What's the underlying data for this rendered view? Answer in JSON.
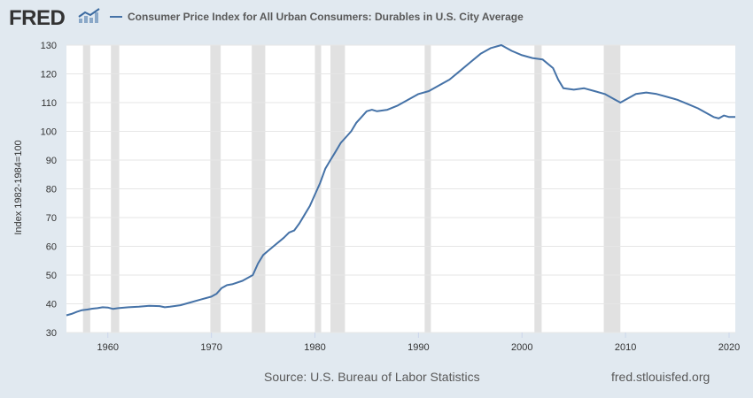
{
  "header": {
    "logo_text": "FRED",
    "logo_icon": "line-chart-icon",
    "legend_label": "Consumer Price Index for All Urban Consumers: Durables in U.S. City Average"
  },
  "footer": {
    "source": "Source: U.S. Bureau of Labor Statistics",
    "site": "fred.stlouisfed.org"
  },
  "colors": {
    "background": "#e1e9f0",
    "plot_background": "#ffffff",
    "line": "#4572a7",
    "recession": "#e1e1e1",
    "grid": "#e6e6e6"
  },
  "chart_data": {
    "type": "line",
    "ylabel": "Index 1982-1984=100",
    "xlim": [
      1956.0,
      2020.6
    ],
    "ylim": [
      30,
      130
    ],
    "x_ticks": [
      1960,
      1970,
      1980,
      1990,
      2000,
      2010,
      2020
    ],
    "y_ticks": [
      30,
      40,
      50,
      60,
      70,
      80,
      90,
      100,
      110,
      120,
      130
    ],
    "grid": "horizontal",
    "recessions": [
      [
        1957.6,
        1958.3
      ],
      [
        1960.3,
        1961.1
      ],
      [
        1969.9,
        1970.9
      ],
      [
        1973.9,
        1975.2
      ],
      [
        1980.0,
        1980.6
      ],
      [
        1981.5,
        1982.9
      ],
      [
        1990.6,
        1991.2
      ],
      [
        2001.2,
        2001.9
      ],
      [
        2007.9,
        2009.5
      ]
    ],
    "series": [
      {
        "x": [
          1956.0,
          1956.5,
          1957.0,
          1957.5,
          1958.0,
          1958.5,
          1959.0,
          1959.5,
          1960.0,
          1960.5,
          1961.0,
          1962.0,
          1963.0,
          1964.0,
          1965.0,
          1965.5,
          1966.0,
          1967.0,
          1968.0,
          1969.0,
          1970.0,
          1970.5,
          1971.0,
          1971.5,
          1972.0,
          1973.0,
          1974.0,
          1974.5,
          1975.0,
          1975.5,
          1976.0,
          1977.0,
          1977.5,
          1978.0,
          1978.5,
          1979.0,
          1979.5,
          1980.0,
          1980.5,
          1981.0,
          1981.5,
          1982.0,
          1982.5,
          1983.0,
          1983.5,
          1984.0,
          1984.5,
          1985.0,
          1985.5,
          1986.0,
          1987.0,
          1988.0,
          1989.0,
          1990.0,
          1991.0,
          1992.0,
          1993.0,
          1994.0,
          1995.0,
          1996.0,
          1997.0,
          1998.0,
          1999.0,
          2000.0,
          2001.0,
          2002.0,
          2003.0,
          2003.5,
          2004.0,
          2005.0,
          2006.0,
          2007.0,
          2008.0,
          2009.0,
          2009.5,
          2010.0,
          2011.0,
          2012.0,
          2013.0,
          2014.0,
          2015.0,
          2016.0,
          2017.0,
          2018.0,
          2018.5,
          2019.0,
          2019.5,
          2020.0,
          2020.6
        ],
        "values": [
          36,
          36.5,
          37.2,
          37.8,
          38,
          38.3,
          38.5,
          38.8,
          38.7,
          38.2,
          38.5,
          38.8,
          39,
          39.3,
          39.2,
          38.8,
          39,
          39.5,
          40.5,
          41.5,
          42.5,
          43.5,
          45.5,
          46.5,
          46.8,
          48,
          50,
          54,
          57,
          58.5,
          60,
          63,
          64.8,
          65.5,
          68,
          71,
          74,
          78,
          82,
          87,
          90,
          93,
          96,
          98,
          100,
          103,
          105,
          107,
          107.5,
          107,
          107.5,
          109,
          111,
          113,
          114,
          116,
          118,
          121,
          124,
          127,
          129,
          130,
          128,
          126.5,
          125.5,
          125,
          122,
          118,
          115,
          114.5,
          115,
          114,
          113,
          111,
          110,
          111,
          113,
          113.5,
          113,
          112,
          111,
          109.5,
          108,
          106,
          105,
          104.5,
          105.5,
          105,
          105
        ]
      }
    ]
  }
}
